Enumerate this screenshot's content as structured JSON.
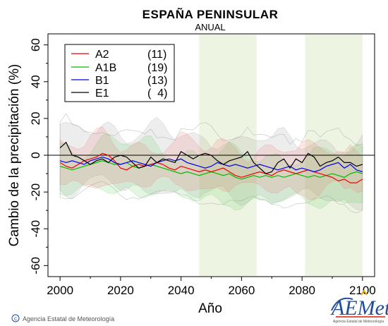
{
  "chart_data": {
    "type": "line",
    "title": "ESPAÑA PENINSULAR",
    "subtitle": "ANUAL",
    "xlabel": "Año",
    "ylabel": "Cambio de la precipitación (%)",
    "xlim": [
      1996,
      2104
    ],
    "ylim": [
      -66,
      66
    ],
    "xticks": [
      2000,
      2020,
      2040,
      2060,
      2080,
      2100
    ],
    "yticks": [
      -60,
      -40,
      -20,
      0,
      20,
      40,
      60
    ],
    "zero_line": 0,
    "shaded_periods": [
      [
        2046,
        2065
      ],
      [
        2081,
        2100
      ]
    ],
    "legend_position": "top-left",
    "grid": false,
    "series": [
      {
        "name": "A2",
        "count": "(11)",
        "color": "#ee0000",
        "x": [
          2000,
          2002,
          2004,
          2006,
          2008,
          2010,
          2012,
          2014,
          2016,
          2018,
          2020,
          2022,
          2024,
          2026,
          2028,
          2030,
          2032,
          2034,
          2036,
          2038,
          2040,
          2042,
          2044,
          2046,
          2048,
          2050,
          2052,
          2054,
          2056,
          2058,
          2060,
          2062,
          2064,
          2066,
          2068,
          2070,
          2072,
          2074,
          2076,
          2078,
          2080,
          2082,
          2084,
          2086,
          2088,
          2090,
          2092,
          2094,
          2096,
          2098,
          2100
        ],
        "values": [
          -4,
          -6,
          -7,
          -5,
          -3,
          -2,
          -1,
          1,
          0,
          -3,
          -7,
          -8,
          -6,
          -5,
          -6,
          -5,
          -4,
          -5,
          -7,
          -8,
          -6,
          -7,
          -8,
          -9,
          -8,
          -9,
          -8,
          -7,
          -9,
          -11,
          -12,
          -11,
          -10,
          -9,
          -10,
          -11,
          -9,
          -8,
          -9,
          -10,
          -9,
          -8,
          -9,
          -10,
          -11,
          -12,
          -14,
          -13,
          -15,
          -15,
          -13
        ]
      },
      {
        "name": "A1B",
        "count": "(19)",
        "color": "#00bb00",
        "x": [
          2000,
          2002,
          2004,
          2006,
          2008,
          2010,
          2012,
          2014,
          2016,
          2018,
          2020,
          2022,
          2024,
          2026,
          2028,
          2030,
          2032,
          2034,
          2036,
          2038,
          2040,
          2042,
          2044,
          2046,
          2048,
          2050,
          2052,
          2054,
          2056,
          2058,
          2060,
          2062,
          2064,
          2066,
          2068,
          2070,
          2072,
          2074,
          2076,
          2078,
          2080,
          2082,
          2084,
          2086,
          2088,
          2090,
          2092,
          2094,
          2096,
          2098,
          2100
        ],
        "values": [
          -6,
          -7,
          -8,
          -7,
          -6,
          -5,
          -4,
          -3,
          -4,
          -5,
          -5,
          -4,
          -6,
          -7,
          -6,
          -5,
          -6,
          -7,
          -8,
          -9,
          -10,
          -9,
          -10,
          -11,
          -10,
          -9,
          -10,
          -11,
          -10,
          -12,
          -13,
          -12,
          -11,
          -12,
          -11,
          -12,
          -11,
          -12,
          -11,
          -10,
          -11,
          -12,
          -11,
          -12,
          -11,
          -10,
          -11,
          -12,
          -10,
          -9,
          -10
        ]
      },
      {
        "name": "B1",
        "count": "(13)",
        "color": "#0000ee",
        "x": [
          2000,
          2002,
          2004,
          2006,
          2008,
          2010,
          2012,
          2014,
          2016,
          2018,
          2020,
          2022,
          2024,
          2026,
          2028,
          2030,
          2032,
          2034,
          2036,
          2038,
          2040,
          2042,
          2044,
          2046,
          2048,
          2050,
          2052,
          2054,
          2056,
          2058,
          2060,
          2062,
          2064,
          2066,
          2068,
          2070,
          2072,
          2074,
          2076,
          2078,
          2080,
          2082,
          2084,
          2086,
          2088,
          2090,
          2092,
          2094,
          2096,
          2098,
          2100
        ],
        "values": [
          -3,
          -4,
          -3,
          -4,
          -5,
          -3,
          -2,
          -1,
          -2,
          -4,
          -5,
          -4,
          -3,
          -4,
          -5,
          -6,
          -4,
          -3,
          -2,
          -3,
          -2,
          -4,
          -5,
          -6,
          -7,
          -6,
          -4,
          -5,
          -6,
          -5,
          -6,
          -7,
          -6,
          -5,
          -6,
          -7,
          -8,
          -7,
          -6,
          -8,
          -7,
          -8,
          -9,
          -8,
          -6,
          -5,
          -4,
          -7,
          -5,
          -8,
          -9
        ]
      },
      {
        "name": "E1",
        "count": "(  4)",
        "color": "#000000",
        "x": [
          2000,
          2002,
          2004,
          2006,
          2008,
          2010,
          2012,
          2014,
          2016,
          2018,
          2020,
          2022,
          2024,
          2026,
          2028,
          2030,
          2032,
          2034,
          2036,
          2038,
          2040,
          2042,
          2044,
          2046,
          2048,
          2050,
          2052,
          2054,
          2056,
          2058,
          2060,
          2062,
          2064,
          2066,
          2068,
          2070,
          2072,
          2074,
          2076,
          2078,
          2080,
          2082,
          2084,
          2086,
          2088,
          2090,
          2092,
          2094,
          2096,
          2098,
          2100
        ],
        "values": [
          4,
          7,
          0,
          -1,
          -3,
          -5,
          -3,
          -2,
          -4,
          -1,
          0,
          -1,
          -4,
          -7,
          -6,
          -1,
          -4,
          -2,
          -3,
          -4,
          2,
          0,
          -2,
          0,
          1,
          0,
          -3,
          -5,
          -3,
          -2,
          -1,
          2,
          -4,
          -7,
          -10,
          -9,
          -4,
          -2,
          -7,
          -2,
          -4,
          1,
          -1,
          -6,
          -4,
          -3,
          -1,
          -4,
          -4,
          -6,
          -5
        ]
      }
    ]
  },
  "footer": {
    "credit": "Agencia Estatal de Meteorología",
    "copyright_symbol": "©"
  },
  "logo": {
    "wordmark": "AEMet",
    "caption": "Agencia Estatal de Meteorología",
    "colors": [
      "#1f4e9c",
      "#f2a900",
      "#d81e05"
    ]
  }
}
